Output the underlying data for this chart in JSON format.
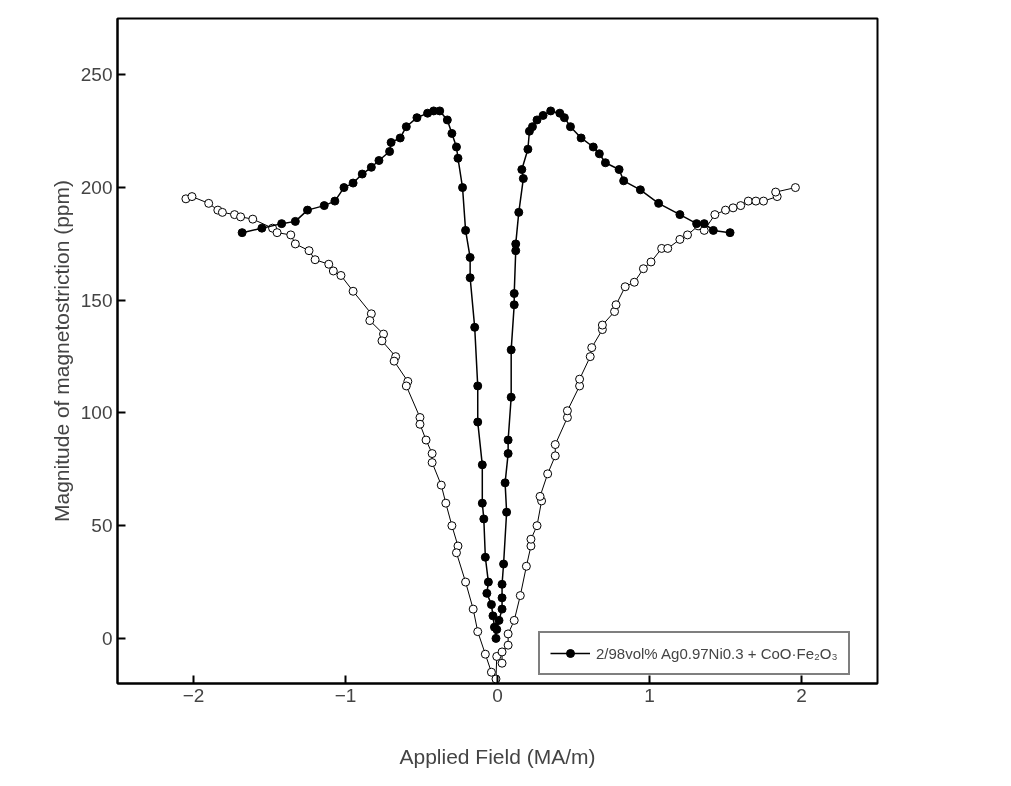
{
  "chart_data": {
    "type": "line",
    "xlabel": "Applied Field (MA/m)",
    "ylabel": "Magnitude of magnetostriction (ppm)",
    "xlim": [
      -2.5,
      2.5
    ],
    "ylim": [
      -20,
      275
    ],
    "xticks": [
      -2,
      -1,
      0,
      1,
      2
    ],
    "yticks": [
      0,
      50,
      100,
      150,
      200,
      250
    ],
    "grid": false,
    "legend": "bottom right",
    "marker": "circle",
    "line_style": "solid",
    "series": [
      {
        "color": "#ffffff",
        "x": [
          -2.05,
          -2.01,
          -1.9,
          -1.84,
          -1.81,
          -1.73,
          -1.69,
          -1.61,
          -1.48,
          -1.45,
          -1.36,
          -1.33,
          -1.24,
          -1.2,
          -1.11,
          -1.08,
          -1.03,
          -0.95,
          -0.83,
          -0.84,
          -0.75,
          -0.76,
          -0.67,
          -0.68,
          -0.59,
          -0.6,
          -0.51,
          -0.51,
          -0.47,
          -0.43,
          -0.43,
          -0.37,
          -0.34,
          -0.3,
          -0.26,
          -0.27,
          -0.21,
          -0.16,
          -0.13,
          -0.08,
          -0.04,
          -0.01,
          -0.005,
          0.03,
          0.03,
          0.07,
          0.07,
          0.11,
          0.15,
          0.19,
          0.22,
          0.22,
          0.26,
          0.29,
          0.28,
          0.33,
          0.38,
          0.38,
          0.46,
          0.46,
          0.54,
          0.54,
          0.61,
          0.62,
          0.69,
          0.69,
          0.77,
          0.78,
          0.84,
          0.9,
          0.96,
          1.01,
          1.08,
          1.12,
          1.2,
          1.25,
          1.32,
          1.36,
          1.43,
          1.5,
          1.55,
          1.6,
          1.65,
          1.7,
          1.75,
          1.84,
          1.83,
          1.96
        ],
        "values": [
          195,
          196,
          193,
          190,
          189,
          188,
          187,
          186,
          182,
          180,
          179,
          175,
          172,
          168,
          166,
          163,
          161,
          154,
          144,
          141,
          135,
          132,
          125,
          123,
          114,
          112,
          98,
          95,
          88,
          82,
          78,
          68,
          60,
          50,
          41,
          38,
          25,
          13,
          3,
          -7,
          -15,
          -18,
          -8,
          -11,
          -6,
          -3,
          2,
          8,
          19,
          32,
          41,
          44,
          50,
          61,
          63,
          73,
          81,
          86,
          98,
          101,
          112,
          115,
          125,
          129,
          137,
          139,
          145,
          148,
          156,
          158,
          164,
          167,
          173,
          173,
          177,
          179,
          183,
          181,
          188,
          190,
          191,
          192,
          194,
          194,
          194,
          196,
          198,
          200
        ]
      },
      {
        "name": "2/98vol% Ag0.97Ni0.3 + CoO·Fe₂O₃",
        "color": "#000000",
        "x": [
          -1.68,
          -1.55,
          -1.42,
          -1.33,
          -1.25,
          -1.14,
          -1.07,
          -1.01,
          -0.95,
          -0.89,
          -0.83,
          -0.78,
          -0.71,
          -0.7,
          -0.64,
          -0.6,
          -0.53,
          -0.46,
          -0.42,
          -0.38,
          -0.33,
          -0.3,
          -0.27,
          -0.26,
          -0.23,
          -0.21,
          -0.18,
          -0.18,
          -0.15,
          -0.13,
          -0.13,
          -0.1,
          -0.1,
          -0.09,
          -0.08,
          -0.06,
          -0.07,
          -0.04,
          -0.03,
          -0.02,
          -0.01,
          -0.005,
          0.01,
          0.03,
          0.03,
          0.03,
          0.04,
          0.06,
          0.05,
          0.07,
          0.07,
          0.09,
          0.09,
          0.11,
          0.11,
          0.12,
          0.12,
          0.14,
          0.17,
          0.16,
          0.2,
          0.21,
          0.23,
          0.26,
          0.3,
          0.35,
          0.41,
          0.44,
          0.48,
          0.55,
          0.63,
          0.67,
          0.71,
          0.8,
          0.83,
          0.94,
          1.06,
          1.2,
          1.31,
          1.36,
          1.42,
          1.53
        ],
        "values": [
          180,
          182,
          184,
          185,
          190,
          192,
          194,
          200,
          202,
          206,
          209,
          212,
          216,
          220,
          222,
          227,
          231,
          233,
          234,
          234,
          230,
          224,
          218,
          213,
          200,
          181,
          169,
          160,
          138,
          112,
          96,
          77,
          60,
          53,
          36,
          25,
          20,
          15,
          10,
          5,
          0,
          4,
          8,
          13,
          18,
          24,
          33,
          56,
          69,
          82,
          88,
          107,
          128,
          148,
          153,
          172,
          175,
          189,
          204,
          208,
          217,
          225,
          227,
          230,
          232,
          234,
          233,
          231,
          227,
          222,
          218,
          215,
          211,
          208,
          203,
          199,
          193,
          188,
          184,
          184,
          181,
          180
        ]
      }
    ]
  }
}
